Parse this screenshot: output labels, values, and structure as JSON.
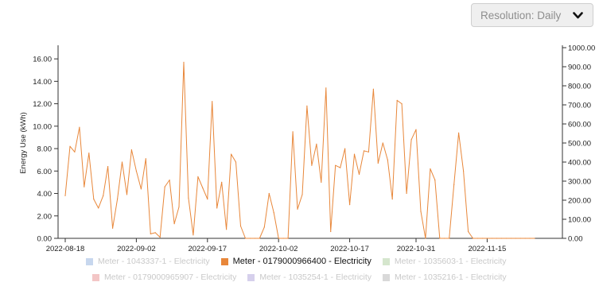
{
  "controls": {
    "resolution_label": "Resolution: Daily"
  },
  "icons": {
    "dropdown": "chevron-down-icon"
  },
  "colors": {
    "active_series": "#e8873a",
    "axis": "#333333",
    "swatch_blue": "#c7d7ee",
    "swatch_orange": "#e8873a",
    "swatch_green": "#d5e6cd",
    "swatch_pink": "#f3c6c6",
    "swatch_purple": "#d6d0ec",
    "swatch_gray": "#d9d9d9"
  },
  "chart_data": {
    "type": "line",
    "ylabel": "Energy Use (kWh)",
    "ylim": [
      0,
      17
    ],
    "y2lim": [
      0,
      1000
    ],
    "yticks": [
      "0.00",
      "2.00",
      "4.00",
      "6.00",
      "8.00",
      "10.00",
      "12.00",
      "14.00",
      "16.00"
    ],
    "y2ticks": [
      "0.00",
      "100.00",
      "200.00",
      "300.00",
      "400.00",
      "500.00",
      "600.00",
      "700.00",
      "800.00",
      "900.00",
      "1000.00"
    ],
    "xticks": [
      "2022-08-18",
      "2022-09-02",
      "2022-09-17",
      "2022-10-02",
      "2022-10-17",
      "2022-10-31",
      "2022-11-15"
    ],
    "x_start": "2022-08-18",
    "x_end": "2022-11-25",
    "legend": "bottom",
    "series": [
      {
        "name": "Meter - 0179000966400 - Electricity",
        "color": "#e8873a",
        "values": [
          3.8,
          8.2,
          7.7,
          9.9,
          4.6,
          7.6,
          3.5,
          2.7,
          3.8,
          6.4,
          0.9,
          3.5,
          6.8,
          3.9,
          7.9,
          6.0,
          4.4,
          7.1,
          0.4,
          0.5,
          0.1,
          4.6,
          5.2,
          1.3,
          2.8,
          15.7,
          3.6,
          0.3,
          5.5,
          4.5,
          3.5,
          12.2,
          2.7,
          5.0,
          0.8,
          7.5,
          6.8,
          1.1,
          0.0,
          0.0,
          0.0,
          0.0,
          1.0,
          4.0,
          2.3,
          0.0,
          0.0,
          0.0,
          9.5,
          2.6,
          3.9,
          11.8,
          6.5,
          8.4,
          5.0,
          13.4,
          0.6,
          6.5,
          6.3,
          8.0,
          3.0,
          7.5,
          5.7,
          7.8,
          7.7,
          13.3,
          6.7,
          8.5,
          7.0,
          3.5,
          12.3,
          12.0,
          4.0,
          8.8,
          9.7,
          2.4,
          0.0,
          6.2,
          5.2,
          0.0,
          0.0,
          0.0,
          4.8,
          9.4,
          6.0,
          0.6,
          0.0,
          0.0,
          0.0,
          0.0,
          0.0,
          0.0,
          0.0,
          0.0,
          0.0,
          0.0,
          0.0,
          0.0,
          0.0,
          0.0
        ]
      }
    ],
    "legend_entries": [
      {
        "label": "Meter - 1043337-1 - Electricity",
        "color": "#c7d7ee",
        "active": false
      },
      {
        "label": "Meter - 0179000966400 - Electricity",
        "color": "#e8873a",
        "active": true
      },
      {
        "label": "Meter - 1035603-1 - Electricity",
        "color": "#d5e6cd",
        "active": false
      },
      {
        "label": "Meter - 0179000965907 - Electricity",
        "color": "#f3c6c6",
        "active": false
      },
      {
        "label": "Meter - 1035254-1 - Electricity",
        "color": "#d6d0ec",
        "active": false
      },
      {
        "label": "Meter - 1035216-1 - Electricity",
        "color": "#d9d9d9",
        "active": false
      }
    ]
  }
}
